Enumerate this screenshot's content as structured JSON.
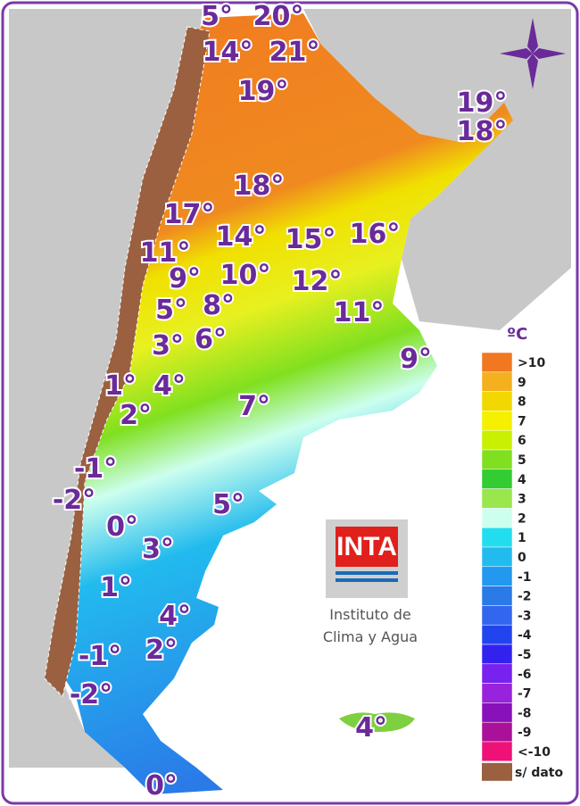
{
  "map": {
    "unit": "ºC",
    "labels": [
      "5°",
      "20°",
      "14°",
      "21°",
      "19°",
      "19°",
      "18°",
      "18°",
      "17°",
      "14°",
      "15°",
      "16°",
      "11°",
      "9°",
      "10°",
      "12°",
      "5°",
      "8°",
      "11°",
      "3°",
      "6°",
      "9°",
      "1°",
      "4°",
      "2°",
      "7°",
      "-1°",
      "-2°",
      "0°",
      "5°",
      "3°",
      "1°",
      "4°",
      "-1°",
      "2°",
      "-2°",
      "4°",
      "0°"
    ],
    "legend": [
      {
        "label": ">10",
        "color": "#f07820"
      },
      {
        "label": "9",
        "color": "#f5b020"
      },
      {
        "label": "8",
        "color": "#f0d800"
      },
      {
        "label": "7",
        "color": "#f5f000"
      },
      {
        "label": "6",
        "color": "#c8f000"
      },
      {
        "label": "5",
        "color": "#80e020"
      },
      {
        "label": "4",
        "color": "#33cc33"
      },
      {
        "label": "3",
        "color": "#99e64d"
      },
      {
        "label": "2",
        "color": "#ccffee"
      },
      {
        "label": "1",
        "color": "#22ddee"
      },
      {
        "label": "0",
        "color": "#22bbee"
      },
      {
        "label": "-1",
        "color": "#2299ee"
      },
      {
        "label": "-2",
        "color": "#2a7ae8"
      },
      {
        "label": "-3",
        "color": "#3366ee"
      },
      {
        "label": "-4",
        "color": "#2244ee"
      },
      {
        "label": "-5",
        "color": "#3322ee"
      },
      {
        "label": "-6",
        "color": "#7722ee"
      },
      {
        "label": "-7",
        "color": "#9922dd"
      },
      {
        "label": "-8",
        "color": "#8811bb"
      },
      {
        "label": "-9",
        "color": "#aa1199"
      },
      {
        "label": "<-10",
        "color": "#ee1177"
      }
    ],
    "no_data": "s/ dato",
    "logo": {
      "text": "INTA",
      "caption": [
        "Instituto de",
        "Clima y Agua"
      ]
    }
  }
}
